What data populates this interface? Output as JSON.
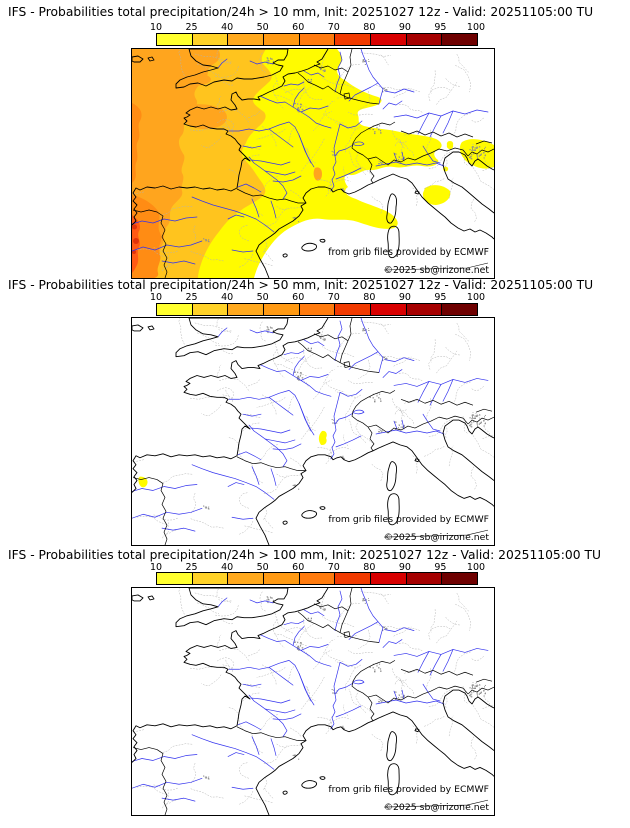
{
  "panels": [
    {
      "id": "p10",
      "threshold_mm": 10,
      "title": "IFS - Probabilities total precipitation/24h > 10 mm, Init: 20251027 12z - Valid: 20251105:00 TU"
    },
    {
      "id": "p50",
      "threshold_mm": 50,
      "title": "IFS - Probabilities total precipitation/24h > 50 mm, Init: 20251027 12z - Valid: 20251105:00 TU"
    },
    {
      "id": "p100",
      "threshold_mm": 100,
      "title": "IFS - Probabilities total precipitation/24h > 100 mm, Init: 20251027 12z - Valid: 20251105:00 TU"
    }
  ],
  "colorbar": {
    "tick_labels": [
      "10",
      "25",
      "40",
      "50",
      "60",
      "70",
      "80",
      "90",
      "95",
      "100"
    ],
    "segment_colors": [
      "#ffff2e",
      "#ffd228",
      "#ffa91e",
      "#ff9a14",
      "#ff7b0e",
      "#f13a00",
      "#d80000",
      "#a50000",
      "#6e0000"
    ]
  },
  "map": {
    "attribution_line1": "from grib files provided by ECMWF",
    "attribution_line2": "©2025 sb@irizone.net"
  },
  "overlay_palette": {
    "yellow": "#fffb00",
    "orange_light": "#ffc41e",
    "orange": "#ffa51e",
    "orange_deep": "#ff8c14",
    "orange_red": "#ff5a14",
    "red": "#e1320a"
  }
}
